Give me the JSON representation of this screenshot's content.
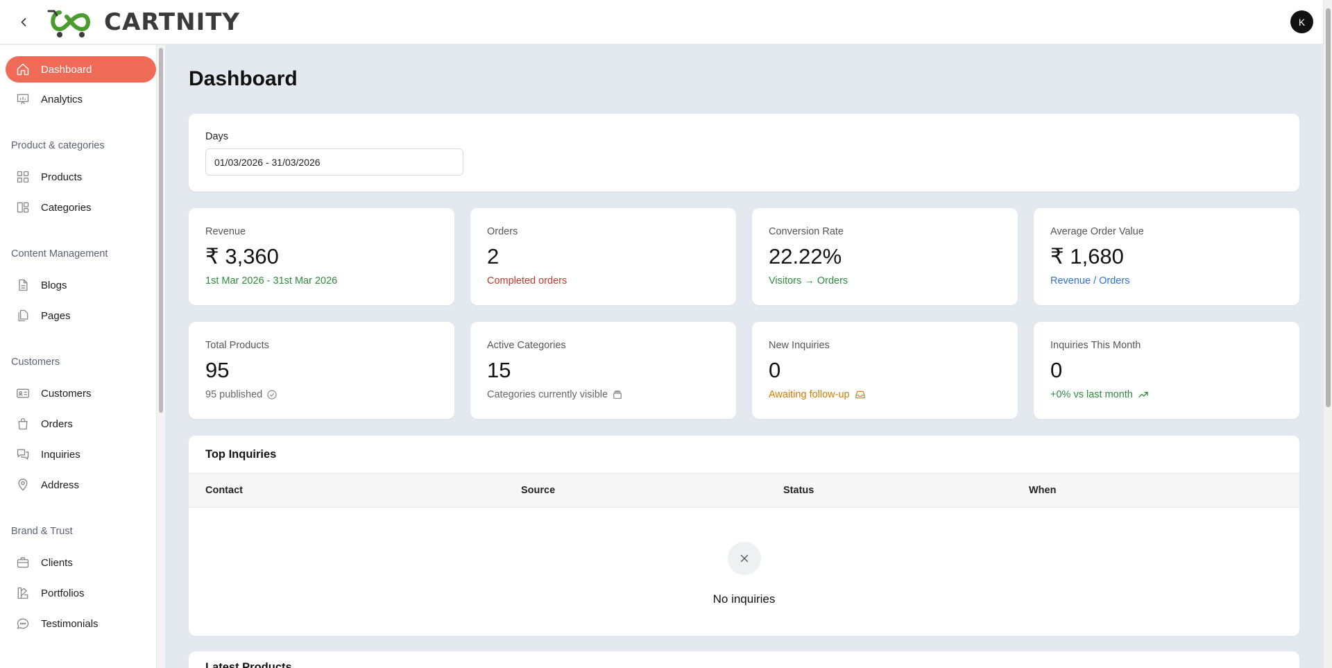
{
  "brand": {
    "name": "CARTNITY",
    "logo_color": "#4a9c2d"
  },
  "user": {
    "initial": "K"
  },
  "sidebar": {
    "items": [
      {
        "label": "Dashboard",
        "icon": "home-icon",
        "active": true
      },
      {
        "label": "Analytics",
        "icon": "presentation-chart-icon"
      },
      {
        "label": "Products",
        "icon": "grid-icon"
      },
      {
        "label": "Categories",
        "icon": "categories-icon"
      },
      {
        "label": "Blogs",
        "icon": "document-icon"
      },
      {
        "label": "Pages",
        "icon": "pages-icon"
      },
      {
        "label": "Customers",
        "icon": "id-card-icon"
      },
      {
        "label": "Orders",
        "icon": "shopping-bag-icon"
      },
      {
        "label": "Inquiries",
        "icon": "chat-bubbles-icon"
      },
      {
        "label": "Address",
        "icon": "map-pin-icon"
      },
      {
        "label": "Clients",
        "icon": "briefcase-icon"
      },
      {
        "label": "Portfolios",
        "icon": "palette-icon"
      },
      {
        "label": "Testimonials",
        "icon": "message-circle-icon"
      }
    ],
    "sections": {
      "product": "Product & categories",
      "content": "Content Management",
      "customers": "Customers",
      "brand": "Brand & Trust"
    }
  },
  "page": {
    "title": "Dashboard"
  },
  "filter": {
    "label": "Days",
    "value": "01/03/2026 - 31/03/2026"
  },
  "stats": [
    {
      "label": "Revenue",
      "value": "₹ 3,360",
      "sub": "1st Mar 2026 - 31st Mar 2026",
      "color": "#2e8b3e"
    },
    {
      "label": "Orders",
      "value": "2",
      "sub": "Completed orders",
      "color": "#c0392b"
    },
    {
      "label": "Conversion Rate",
      "value": "22.22%",
      "sub": "Visitors → Orders",
      "color": "#2e8b3e"
    },
    {
      "label": "Average Order Value",
      "value": "₹ 1,680",
      "sub": "Revenue / Orders",
      "color": "#2f6fde"
    },
    {
      "label": "Total Products",
      "value": "95",
      "sub": "95 published",
      "color": "#666666",
      "icon": "check-circle-icon"
    },
    {
      "label": "Active Categories",
      "value": "15",
      "sub": "Categories currently visible",
      "color": "#666666",
      "icon": "stack-icon"
    },
    {
      "label": "New Inquiries",
      "value": "0",
      "sub": "Awaiting follow-up",
      "color": "#d97a00",
      "icon": "inbox-icon"
    },
    {
      "label": "Inquiries This Month",
      "value": "0",
      "sub": "+0% vs last month",
      "color": "#2e8b3e",
      "icon": "trending-up-icon"
    }
  ],
  "inquiries": {
    "title": "Top Inquiries",
    "columns": [
      "Contact",
      "Source",
      "Status",
      "When"
    ],
    "empty_text": "No inquiries"
  },
  "latest": {
    "title": "Latest Products"
  }
}
